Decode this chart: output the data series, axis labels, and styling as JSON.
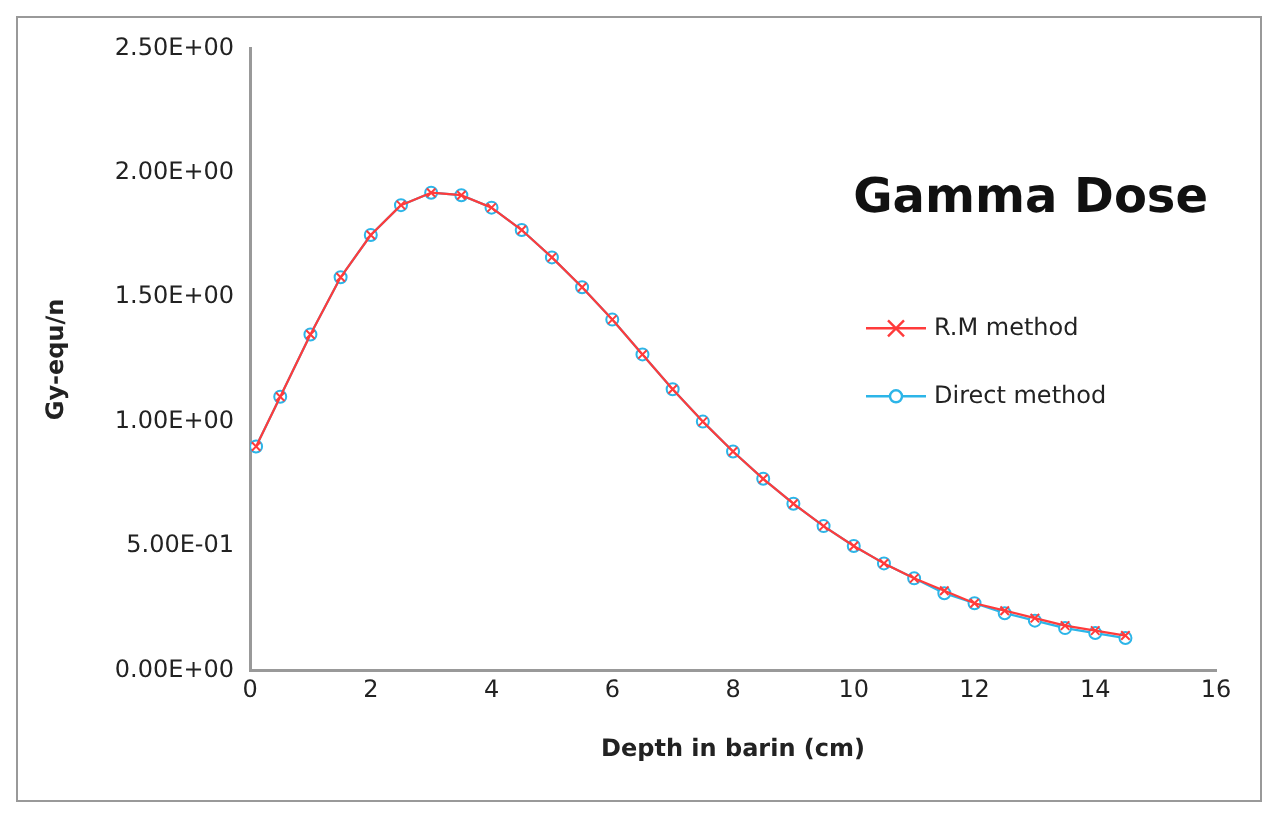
{
  "chart_data": {
    "type": "line",
    "title": "Gamma Dose",
    "xlabel": "Depth in barin (cm)",
    "ylabel": "Gy-equ/n",
    "x": [
      0.1,
      0.5,
      1.0,
      1.5,
      2.0,
      2.5,
      3.0,
      3.5,
      4.0,
      4.5,
      5.0,
      5.5,
      6.0,
      6.5,
      7.0,
      7.5,
      8.0,
      8.5,
      9.0,
      9.5,
      10.0,
      10.5,
      11.0,
      11.5,
      12.0,
      12.5,
      13.0,
      13.5,
      14.0,
      14.5
    ],
    "series": [
      {
        "name": "R.M method",
        "color": "#ff3b3b",
        "marker": "cross",
        "values": [
          0.9,
          1.1,
          1.35,
          1.58,
          1.75,
          1.87,
          1.92,
          1.91,
          1.86,
          1.77,
          1.66,
          1.54,
          1.41,
          1.27,
          1.13,
          1.0,
          0.88,
          0.77,
          0.67,
          0.58,
          0.5,
          0.43,
          0.37,
          0.32,
          0.27,
          0.24,
          0.21,
          0.18,
          0.16,
          0.14
        ]
      },
      {
        "name": "Direct method",
        "color": "#2cb5e8",
        "marker": "circle",
        "values": [
          0.9,
          1.1,
          1.35,
          1.58,
          1.75,
          1.87,
          1.92,
          1.91,
          1.86,
          1.77,
          1.66,
          1.54,
          1.41,
          1.27,
          1.13,
          1.0,
          0.88,
          0.77,
          0.67,
          0.58,
          0.5,
          0.43,
          0.37,
          0.31,
          0.27,
          0.23,
          0.2,
          0.17,
          0.15,
          0.13
        ]
      }
    ],
    "xlim": [
      0,
      16
    ],
    "xticks": [
      0,
      2,
      4,
      6,
      8,
      10,
      12,
      14,
      16
    ],
    "ylim": [
      0,
      2.5
    ],
    "yticks": [
      {
        "value": 0,
        "label": "0.00E+00"
      },
      {
        "value": 0.5,
        "label": "5.00E-01"
      },
      {
        "value": 1,
        "label": "1.00E+00"
      },
      {
        "value": 1.5,
        "label": "1.50E+00"
      },
      {
        "value": 2,
        "label": "2.00E+00"
      },
      {
        "value": 2.5,
        "label": "2.50E+00"
      }
    ],
    "grid": false,
    "legend": "right",
    "line_style": "solid"
  }
}
